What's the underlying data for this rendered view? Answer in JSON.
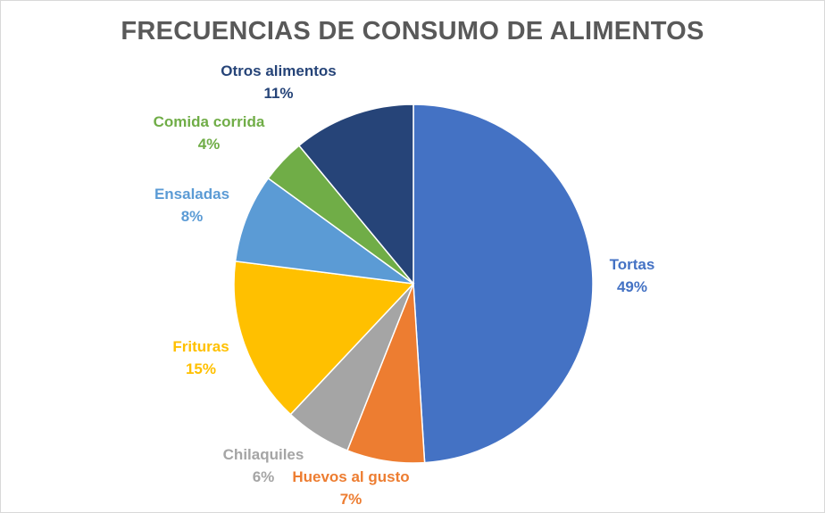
{
  "chart_data": {
    "type": "pie",
    "title": "FRECUENCIAS DE CONSUMO DE ALIMENTOS",
    "slices": [
      {
        "label": "Tortas",
        "value": 49,
        "display": "49%",
        "color": "#4472C4"
      },
      {
        "label": "Huevos al gusto",
        "value": 7,
        "display": "7%",
        "color": "#ED7D31"
      },
      {
        "label": "Chilaquiles",
        "value": 6,
        "display": "6%",
        "color": "#A5A5A5"
      },
      {
        "label": "Frituras",
        "value": 15,
        "display": "15%",
        "color": "#FFC000"
      },
      {
        "label": "Ensaladas",
        "value": 8,
        "display": "8%",
        "color": "#5B9BD5"
      },
      {
        "label": "Comida corrida",
        "value": 4,
        "display": "4%",
        "color": "#70AD47"
      },
      {
        "label": "Otros alimentos",
        "value": 11,
        "display": "11%",
        "color": "#264478"
      }
    ],
    "start_angle": "top",
    "direction": "clockwise",
    "legend": "none"
  }
}
